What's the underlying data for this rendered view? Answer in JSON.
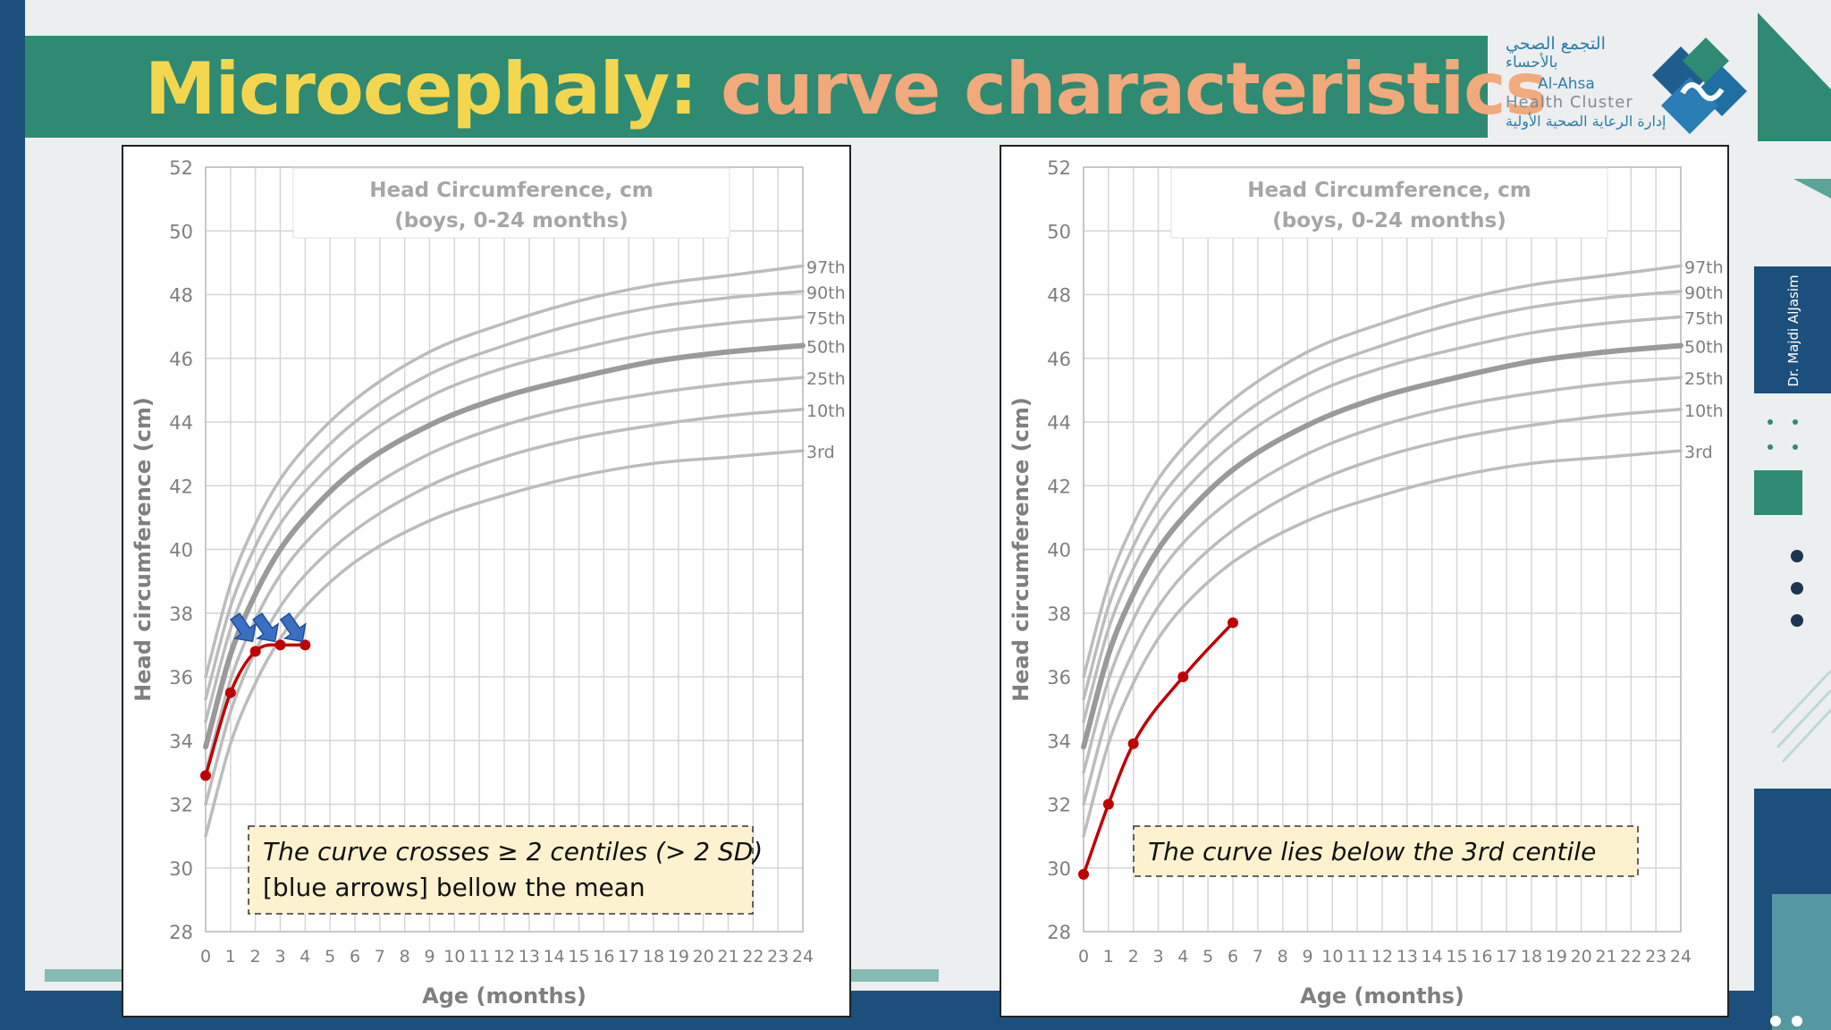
{
  "slide": {
    "title_part1": "Microcephaly:",
    "title_part2": "curve characteristics",
    "logo": {
      "arabic_line1": "التجمع الصحي",
      "arabic_line2": "بالأحساء",
      "english_line1": "Al-Ahsa",
      "english_line2": "Health Cluster",
      "arabic_line3": "إدارة الرعاية الصحية الأولية"
    },
    "author": "Dr. Majdi AlJasim",
    "colors": {
      "banner": "#2e8a72",
      "title_yellow": "#f4d64e",
      "title_orange": "#f2a97b",
      "frame_blue": "#1d4f7c",
      "patient_line": "#c00000",
      "arrow_blue": "#3a6fc4",
      "note_fill": "#fdf2d0"
    }
  },
  "chart_data": [
    {
      "type": "line",
      "title_line1": "Head Circumference, cm",
      "title_line2": "(boys, 0-24 months)",
      "xlabel": "Age (months)",
      "ylabel": "Head circumference (cm)",
      "xlim": [
        0,
        24
      ],
      "ylim": [
        28,
        52
      ],
      "x_ticks": [
        0,
        1,
        2,
        3,
        4,
        5,
        6,
        7,
        8,
        9,
        10,
        11,
        12,
        13,
        14,
        15,
        16,
        17,
        18,
        19,
        20,
        21,
        22,
        23,
        24
      ],
      "y_ticks": [
        28,
        30,
        32,
        34,
        36,
        38,
        40,
        42,
        44,
        46,
        48,
        50,
        52
      ],
      "grid": true,
      "centiles": [
        {
          "name": "97th",
          "x": [
            0,
            1,
            2,
            3,
            4,
            6,
            9,
            12,
            15,
            18,
            21,
            24
          ],
          "values": [
            36.0,
            38.9,
            40.8,
            42.2,
            43.2,
            44.7,
            46.2,
            47.1,
            47.8,
            48.3,
            48.6,
            48.9
          ]
        },
        {
          "name": "90th",
          "x": [
            0,
            1,
            2,
            3,
            4,
            6,
            9,
            12,
            15,
            18,
            21,
            24
          ],
          "values": [
            35.3,
            38.2,
            40.1,
            41.5,
            42.5,
            44.0,
            45.5,
            46.4,
            47.1,
            47.6,
            47.9,
            48.1
          ]
        },
        {
          "name": "75th",
          "x": [
            0,
            1,
            2,
            3,
            4,
            6,
            9,
            12,
            15,
            18,
            21,
            24
          ],
          "values": [
            34.6,
            37.5,
            39.4,
            40.8,
            41.8,
            43.3,
            44.8,
            45.7,
            46.3,
            46.8,
            47.1,
            47.3
          ]
        },
        {
          "name": "50th",
          "x": [
            0,
            1,
            2,
            3,
            4,
            6,
            9,
            12,
            15,
            18,
            21,
            24
          ],
          "values": [
            33.8,
            36.7,
            38.6,
            40.0,
            41.0,
            42.5,
            43.9,
            44.8,
            45.4,
            45.9,
            46.2,
            46.4
          ]
        },
        {
          "name": "25th",
          "x": [
            0,
            1,
            2,
            3,
            4,
            6,
            9,
            12,
            15,
            18,
            21,
            24
          ],
          "values": [
            33.0,
            35.9,
            37.8,
            39.2,
            40.2,
            41.6,
            43.0,
            43.9,
            44.5,
            44.9,
            45.2,
            45.4
          ]
        },
        {
          "name": "10th",
          "x": [
            0,
            1,
            2,
            3,
            4,
            6,
            9,
            12,
            15,
            18,
            21,
            24
          ],
          "values": [
            32.0,
            34.9,
            36.8,
            38.2,
            39.2,
            40.6,
            42.0,
            42.9,
            43.5,
            43.9,
            44.2,
            44.4
          ]
        },
        {
          "name": "3rd",
          "x": [
            0,
            1,
            2,
            3,
            4,
            6,
            9,
            12,
            15,
            18,
            21,
            24
          ],
          "values": [
            31.0,
            33.9,
            35.8,
            37.2,
            38.2,
            39.6,
            40.9,
            41.7,
            42.3,
            42.7,
            42.9,
            43.1
          ]
        }
      ],
      "patient": {
        "x": [
          0,
          1,
          2,
          3,
          4
        ],
        "values": [
          32.9,
          35.5,
          36.8,
          37.0,
          37.0
        ]
      },
      "arrows_at_x": [
        1.6,
        2.5,
        3.6
      ],
      "note_lines": [
        "The curve crosses ≥ 2 centiles (> 2 SD)",
        "[blue arrows] bellow the mean"
      ]
    },
    {
      "type": "line",
      "title_line1": "Head Circumference, cm",
      "title_line2": "(boys, 0-24 months)",
      "xlabel": "Age (months)",
      "ylabel": "Head circumference (cm)",
      "xlim": [
        0,
        24
      ],
      "ylim": [
        28,
        52
      ],
      "x_ticks": [
        0,
        1,
        2,
        3,
        4,
        5,
        6,
        7,
        8,
        9,
        10,
        11,
        12,
        13,
        14,
        15,
        16,
        17,
        18,
        19,
        20,
        21,
        22,
        23,
        24
      ],
      "y_ticks": [
        28,
        30,
        32,
        34,
        36,
        38,
        40,
        42,
        44,
        46,
        48,
        50,
        52
      ],
      "grid": true,
      "centiles": [
        {
          "name": "97th",
          "x": [
            0,
            1,
            2,
            3,
            4,
            6,
            9,
            12,
            15,
            18,
            21,
            24
          ],
          "values": [
            36.0,
            38.9,
            40.8,
            42.2,
            43.2,
            44.7,
            46.2,
            47.1,
            47.8,
            48.3,
            48.6,
            48.9
          ]
        },
        {
          "name": "90th",
          "x": [
            0,
            1,
            2,
            3,
            4,
            6,
            9,
            12,
            15,
            18,
            21,
            24
          ],
          "values": [
            35.3,
            38.2,
            40.1,
            41.5,
            42.5,
            44.0,
            45.5,
            46.4,
            47.1,
            47.6,
            47.9,
            48.1
          ]
        },
        {
          "name": "75th",
          "x": [
            0,
            1,
            2,
            3,
            4,
            6,
            9,
            12,
            15,
            18,
            21,
            24
          ],
          "values": [
            34.6,
            37.5,
            39.4,
            40.8,
            41.8,
            43.3,
            44.8,
            45.7,
            46.3,
            46.8,
            47.1,
            47.3
          ]
        },
        {
          "name": "50th",
          "x": [
            0,
            1,
            2,
            3,
            4,
            6,
            9,
            12,
            15,
            18,
            21,
            24
          ],
          "values": [
            33.8,
            36.7,
            38.6,
            40.0,
            41.0,
            42.5,
            43.9,
            44.8,
            45.4,
            45.9,
            46.2,
            46.4
          ]
        },
        {
          "name": "25th",
          "x": [
            0,
            1,
            2,
            3,
            4,
            6,
            9,
            12,
            15,
            18,
            21,
            24
          ],
          "values": [
            33.0,
            35.9,
            37.8,
            39.2,
            40.2,
            41.6,
            43.0,
            43.9,
            44.5,
            44.9,
            45.2,
            45.4
          ]
        },
        {
          "name": "10th",
          "x": [
            0,
            1,
            2,
            3,
            4,
            6,
            9,
            12,
            15,
            18,
            21,
            24
          ],
          "values": [
            32.0,
            34.9,
            36.8,
            38.2,
            39.2,
            40.6,
            42.0,
            42.9,
            43.5,
            43.9,
            44.2,
            44.4
          ]
        },
        {
          "name": "3rd",
          "x": [
            0,
            1,
            2,
            3,
            4,
            6,
            9,
            12,
            15,
            18,
            21,
            24
          ],
          "values": [
            31.0,
            33.9,
            35.8,
            37.2,
            38.2,
            39.6,
            40.9,
            41.7,
            42.3,
            42.7,
            42.9,
            43.1
          ]
        }
      ],
      "patient": {
        "x": [
          0,
          1,
          2,
          4,
          6
        ],
        "values": [
          29.8,
          32.0,
          33.9,
          36.0,
          37.7
        ]
      },
      "arrows_at_x": [],
      "note_lines": [
        "The curve lies below the 3rd centile"
      ]
    }
  ]
}
